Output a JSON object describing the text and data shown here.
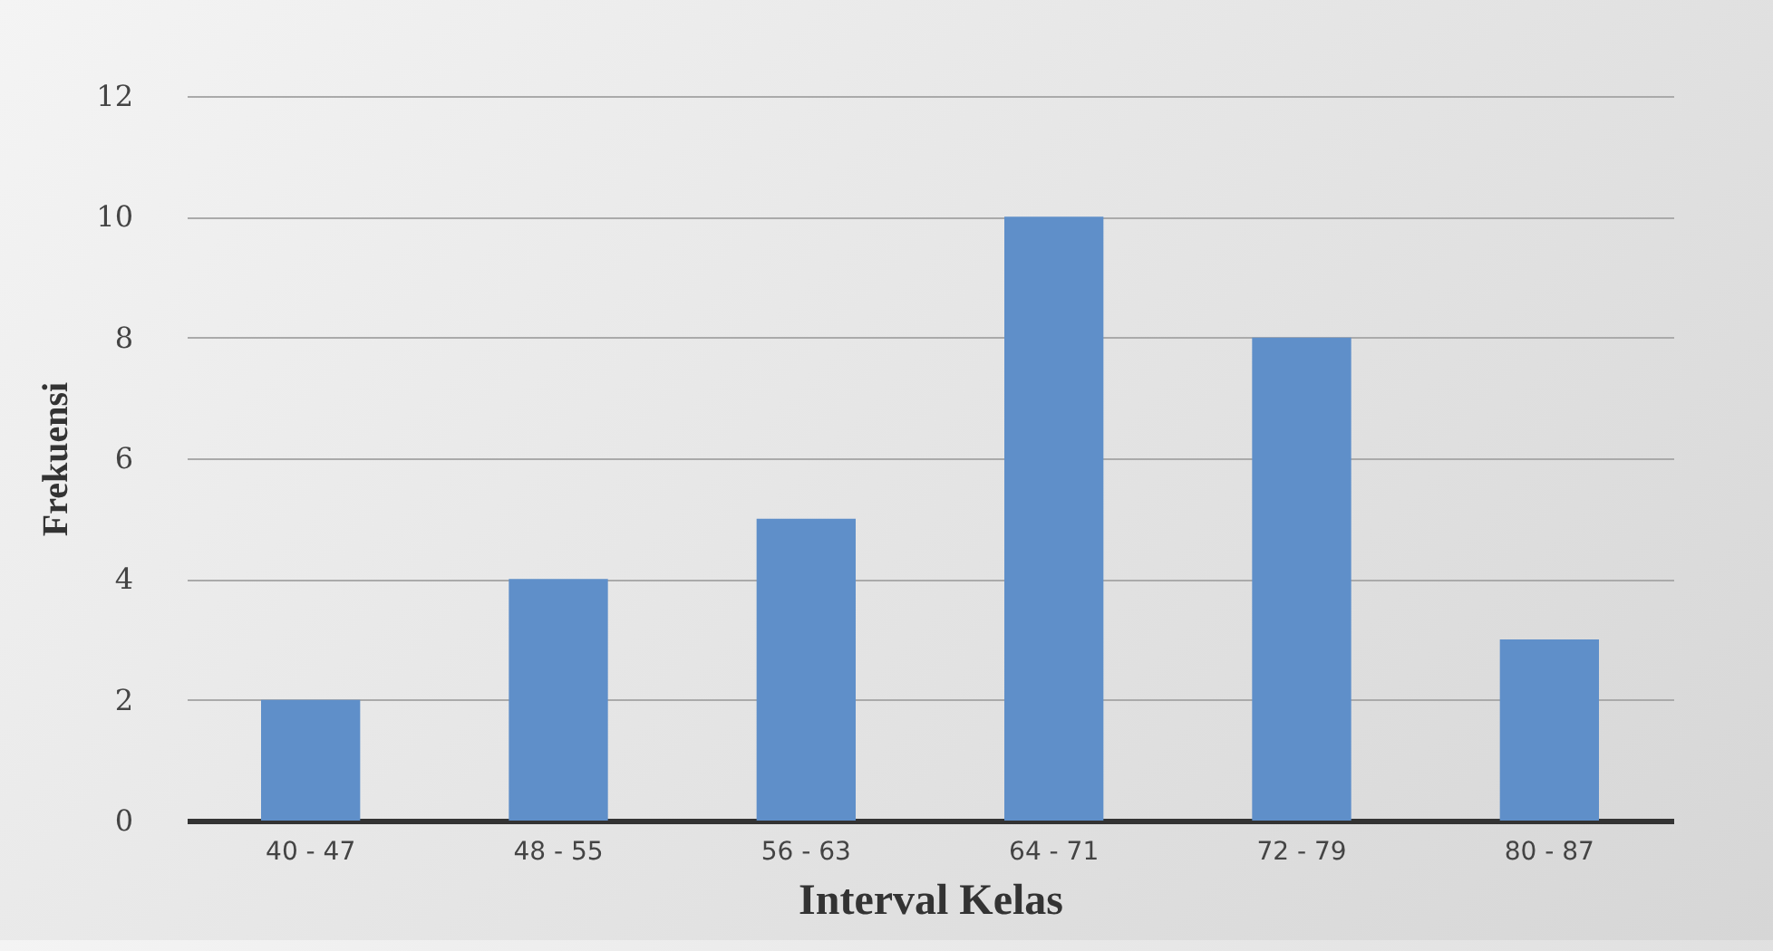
{
  "chart_data": {
    "type": "bar",
    "xlabel": "Interval Kelas",
    "ylabel": "Frekuensi",
    "categories": [
      "40 - 47",
      "48 - 55",
      "56 - 63",
      "64 - 71",
      "72 - 79",
      "80 - 87"
    ],
    "values": [
      2,
      4,
      5,
      10,
      8,
      3
    ],
    "color": "#5f8fc9",
    "ylim": [
      0,
      12
    ],
    "yticks": [
      0,
      2,
      4,
      6,
      8,
      10,
      12
    ],
    "grid": "y"
  }
}
